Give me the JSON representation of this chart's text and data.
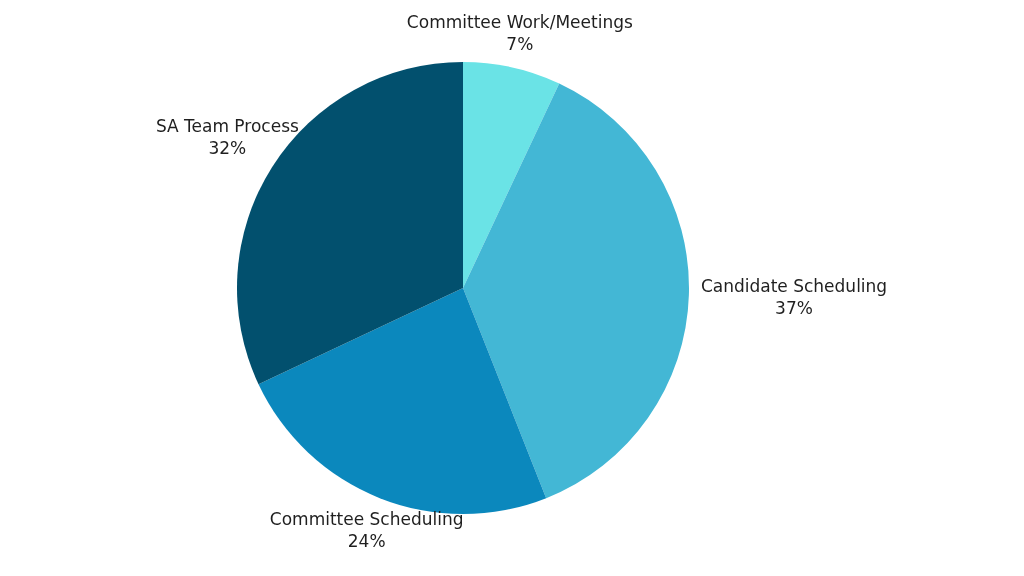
{
  "chart_data": {
    "type": "pie",
    "categories": [
      "Committee Work/Meetings",
      "Candidate Scheduling",
      "Committee Scheduling",
      "SA Team Process"
    ],
    "values": [
      7,
      37,
      24,
      32
    ],
    "value_labels": [
      "7%",
      "37%",
      "24%",
      "32%"
    ],
    "colors": [
      "#6ae3e6",
      "#43b7d5",
      "#0b88bd",
      "#02506e"
    ],
    "legend": false
  }
}
